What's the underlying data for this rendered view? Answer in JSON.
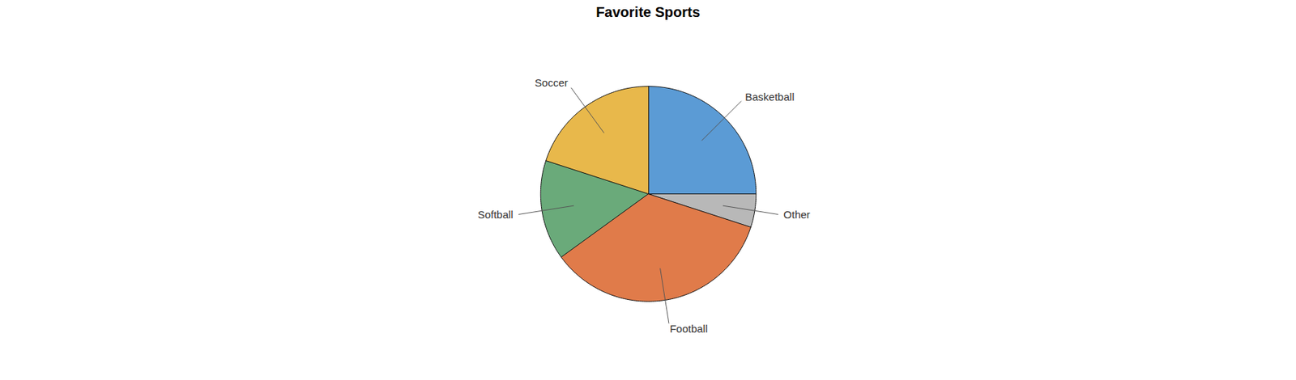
{
  "chart_data": {
    "type": "pie",
    "title": "Favorite Sports",
    "categories": [
      "Basketball",
      "Other",
      "Football",
      "Softball",
      "Soccer"
    ],
    "values": [
      25,
      5,
      35,
      15,
      20
    ],
    "colors": [
      "#5b9bd5",
      "#b8b8b8",
      "#e07b4a",
      "#6aaa7a",
      "#e8b84b"
    ]
  }
}
